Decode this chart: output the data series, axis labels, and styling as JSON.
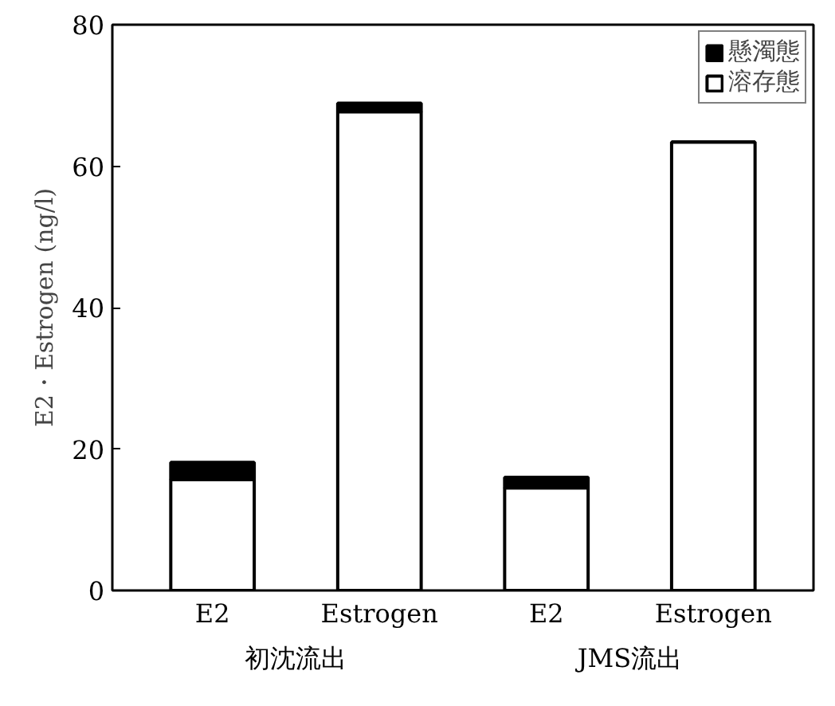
{
  "chart_data": {
    "type": "bar",
    "stacked": true,
    "ylabel": "E2・Estrogen (ng/l)",
    "categories": [
      "E2",
      "Estrogen",
      "E2",
      "Estrogen"
    ],
    "series": [
      {
        "name": "溶存態",
        "color": "#ffffff",
        "values": [
          15.7,
          67.7,
          14.5,
          63.4
        ]
      },
      {
        "name": "懸濁態",
        "color": "#000000",
        "values": [
          2.4,
          1.2,
          1.5,
          0
        ]
      }
    ],
    "annotations": [
      "初沈流出",
      "JMS流出"
    ],
    "ylim": [
      0,
      80
    ],
    "yticks": [
      0,
      20,
      40,
      60,
      80
    ],
    "grid": false,
    "legend": "top right"
  }
}
